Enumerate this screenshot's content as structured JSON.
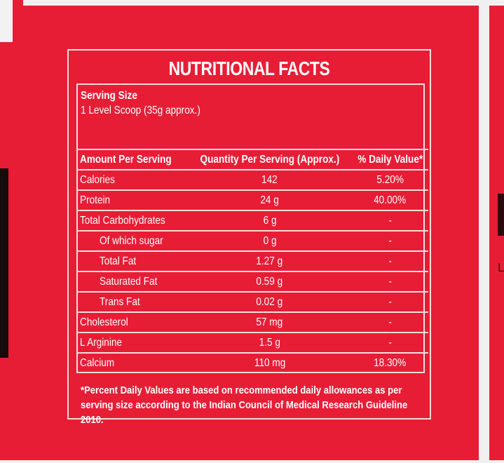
{
  "title": "NUTRITIONAL FACTS",
  "serving": {
    "label": "Serving Size",
    "value": "1 Level Scoop (35g approx.)"
  },
  "table": {
    "headers": [
      "Amount Per Serving",
      "Quantity Per Serving (Approx.)",
      "% Daily Value*"
    ],
    "rows": [
      {
        "name": "Calories",
        "qty": "142",
        "dv": "5.20%",
        "indent": false
      },
      {
        "name": "Protein",
        "qty": "24 g",
        "dv": "40.00%",
        "indent": false
      },
      {
        "name": "Total Carbohydrates",
        "qty": "6 g",
        "dv": "-",
        "indent": false
      },
      {
        "name": "Of which sugar",
        "qty": "0 g",
        "dv": "-",
        "indent": true
      },
      {
        "name": "Total Fat",
        "qty": "1.27 g",
        "dv": "-",
        "indent": true
      },
      {
        "name": "Saturated Fat",
        "qty": "0.59 g",
        "dv": "-",
        "indent": true
      },
      {
        "name": "Trans Fat",
        "qty": "0.02 g",
        "dv": "-",
        "indent": true
      },
      {
        "name": "Cholesterol",
        "qty": "57 mg",
        "dv": "-",
        "indent": false
      },
      {
        "name": "L Arginine",
        "qty": "1.5 g",
        "dv": "-",
        "indent": false
      },
      {
        "name": "Calcium",
        "qty": "110 mg",
        "dv": "18.30%",
        "indent": false
      }
    ]
  },
  "footnote": "*Percent Daily Values are based on recommended daily allowances as per serving size according to the Indian Council of Medical Research Guideline 2010.",
  "side": {
    "right_letter": "L"
  },
  "colors": {
    "panel": "#e71d36",
    "border": "#f7dede",
    "text": "#ffffff"
  }
}
